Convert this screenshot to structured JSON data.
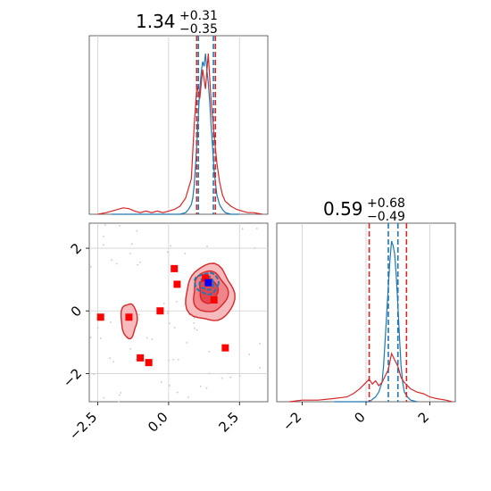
{
  "chart_data": [
    {
      "type": "area",
      "panel": "marginal-x",
      "title": {
        "median": "1.34",
        "plus": "+0.31",
        "minus": "−0.35"
      },
      "xlim": [
        -2.8,
        3.5
      ],
      "series": [
        {
          "color": "#1f77b4",
          "quantiles": [
            1.05,
            1.58
          ],
          "x": [
            -2.0,
            0.4,
            0.6,
            0.7,
            0.8,
            0.85,
            0.9,
            0.95,
            1.0,
            1.05,
            1.1,
            1.15,
            1.2,
            1.25,
            1.3,
            1.35,
            1.4,
            1.45,
            1.5,
            1.55,
            1.6,
            1.65,
            1.7,
            1.8,
            1.9,
            2.0,
            2.2,
            2.5
          ],
          "density": [
            0,
            0,
            0.01,
            0.03,
            0.06,
            0.1,
            0.18,
            0.3,
            0.45,
            0.62,
            0.78,
            0.88,
            0.95,
            0.92,
            1.0,
            0.9,
            0.82,
            0.7,
            0.55,
            0.42,
            0.28,
            0.2,
            0.12,
            0.06,
            0.03,
            0.01,
            0,
            0
          ]
        },
        {
          "color": "#d62728",
          "quantiles": [
            0.99,
            1.65
          ],
          "x": [
            -2.5,
            -2.2,
            -2.0,
            -1.8,
            -1.6,
            -1.4,
            -1.2,
            -1.0,
            -0.8,
            -0.6,
            -0.4,
            -0.2,
            0.0,
            0.2,
            0.4,
            0.6,
            0.8,
            0.9,
            1.0,
            1.1,
            1.2,
            1.3,
            1.4,
            1.5,
            1.6,
            1.7,
            1.8,
            1.9,
            2.0,
            2.2,
            2.4,
            2.6,
            2.8,
            3.0,
            3.3
          ],
          "density": [
            0,
            0.01,
            0.02,
            0.03,
            0.04,
            0.035,
            0.02,
            0.01,
            0.02,
            0.01,
            0.02,
            0.01,
            0.02,
            0.03,
            0.05,
            0.1,
            0.22,
            0.55,
            0.8,
            0.72,
            0.9,
            0.78,
            1.0,
            0.7,
            0.5,
            0.32,
            0.2,
            0.12,
            0.08,
            0.05,
            0.03,
            0.02,
            0.01,
            0.01,
            0
          ]
        }
      ]
    },
    {
      "type": "area",
      "panel": "marginal-y",
      "title": {
        "median": "0.59",
        "plus": "+0.68",
        "minus": "−0.49"
      },
      "xlim": [
        -2.8,
        2.8
      ],
      "xticks": [
        "−2",
        "0",
        "2"
      ],
      "series": [
        {
          "color": "#1f77b4",
          "quantiles": [
            0.7,
            1.0
          ],
          "x": [
            -1.0,
            0.1,
            0.3,
            0.4,
            0.5,
            0.55,
            0.6,
            0.65,
            0.7,
            0.75,
            0.8,
            0.85,
            0.9,
            0.95,
            1.0,
            1.05,
            1.1,
            1.15,
            1.2,
            1.3,
            1.4,
            1.6
          ],
          "density": [
            0,
            0,
            0.03,
            0.06,
            0.12,
            0.22,
            0.38,
            0.55,
            0.72,
            0.88,
            1.0,
            0.97,
            0.92,
            0.78,
            0.6,
            0.4,
            0.22,
            0.12,
            0.06,
            0.03,
            0.01,
            0
          ]
        },
        {
          "color": "#d62728",
          "quantiles": [
            0.1,
            1.27
          ],
          "x": [
            -2.4,
            -2.0,
            -1.5,
            -1.0,
            -0.6,
            -0.4,
            -0.2,
            0.0,
            0.1,
            0.2,
            0.3,
            0.4,
            0.5,
            0.6,
            0.7,
            0.8,
            0.9,
            1.0,
            1.1,
            1.2,
            1.3,
            1.4,
            1.5,
            1.6,
            1.8,
            2.0,
            2.2,
            2.5,
            2.7
          ],
          "density": [
            0,
            0.01,
            0.01,
            0.02,
            0.03,
            0.05,
            0.08,
            0.12,
            0.14,
            0.11,
            0.13,
            0.1,
            0.12,
            0.16,
            0.2,
            0.3,
            0.26,
            0.22,
            0.15,
            0.12,
            0.1,
            0.08,
            0.07,
            0.06,
            0.05,
            0.03,
            0.02,
            0.01,
            0
          ]
        }
      ]
    },
    {
      "type": "scatter",
      "panel": "joint",
      "xlim": [
        -2.8,
        3.5
      ],
      "ylim": [
        -2.9,
        2.8
      ],
      "xticks": [
        "−2.5",
        "0.0",
        "2.5"
      ],
      "yticks": [
        "−2",
        "0",
        "2"
      ],
      "red_points": [
        [
          0.2,
          1.35
        ],
        [
          0.3,
          0.85
        ],
        [
          -2.4,
          -0.2
        ],
        [
          -1.4,
          -0.2
        ],
        [
          -0.3,
          0.0
        ],
        [
          -1.0,
          -1.5
        ],
        [
          -0.7,
          -1.65
        ],
        [
          1.6,
          0.35
        ],
        [
          2.0,
          -1.18
        ],
        [
          1.3,
          1.05
        ]
      ],
      "blue_point": [
        1.4,
        0.9
      ],
      "contours": [
        {
          "color": "#d62728",
          "fill": "#f6b4b6",
          "cx": 1.45,
          "cy": 0.55,
          "rx": 0.85,
          "ry": 0.9
        },
        {
          "color": "#d62728",
          "fill": "#ee7e82",
          "cx": 1.45,
          "cy": 0.6,
          "rx": 0.6,
          "ry": 0.65
        },
        {
          "color": "#d62728",
          "fill": "#e04047",
          "cx": 1.4,
          "cy": 0.65,
          "rx": 0.32,
          "ry": 0.4
        },
        {
          "color": "#d62728",
          "fill": "#f6b4b6",
          "cx": -1.4,
          "cy": -0.3,
          "rx": 0.28,
          "ry": 0.55
        },
        {
          "color": "#1f77b4",
          "fill": "none",
          "cx": 1.35,
          "cy": 0.88,
          "rx": 0.42,
          "ry": 0.33
        },
        {
          "color": "#1f77b4",
          "fill": "none",
          "cx": 1.35,
          "cy": 0.88,
          "rx": 0.25,
          "ry": 0.2
        }
      ]
    }
  ]
}
